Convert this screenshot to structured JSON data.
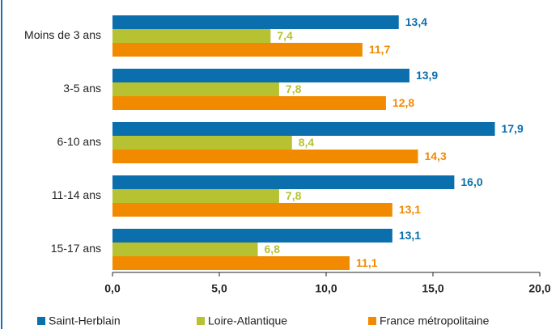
{
  "chart_data": {
    "type": "barh",
    "categories": [
      "Moins de 3 ans",
      "3-5 ans",
      "6-10 ans",
      "11-14 ans",
      "15-17 ans"
    ],
    "series": [
      {
        "name": "Saint-Herblain",
        "color": "#0b6fad",
        "values": [
          13.4,
          13.9,
          17.9,
          16.0,
          13.1
        ],
        "value_labels": [
          "13,4",
          "13,9",
          "17,9",
          "16,0",
          "13,1"
        ]
      },
      {
        "name": "Loire-Atlantique",
        "color": "#b6c232",
        "values": [
          7.4,
          7.8,
          8.4,
          7.8,
          6.8
        ],
        "value_labels": [
          "7,4",
          "7,8",
          "8,4",
          "7,8",
          "6,8"
        ]
      },
      {
        "name": "France métropolitaine",
        "color": "#f28a00",
        "values": [
          11.7,
          12.8,
          14.3,
          13.1,
          11.1
        ],
        "value_labels": [
          "11,7",
          "12,8",
          "14,3",
          "13,1",
          "11,1"
        ]
      }
    ],
    "xlim": [
      0,
      20
    ],
    "xticks": [
      {
        "value": 0,
        "label": "0,0"
      },
      {
        "value": 5,
        "label": "5,0"
      },
      {
        "value": 10,
        "label": "10,0"
      },
      {
        "value": 15,
        "label": "15,0"
      },
      {
        "value": 20,
        "label": "20,0"
      }
    ],
    "legend": "bottom"
  }
}
